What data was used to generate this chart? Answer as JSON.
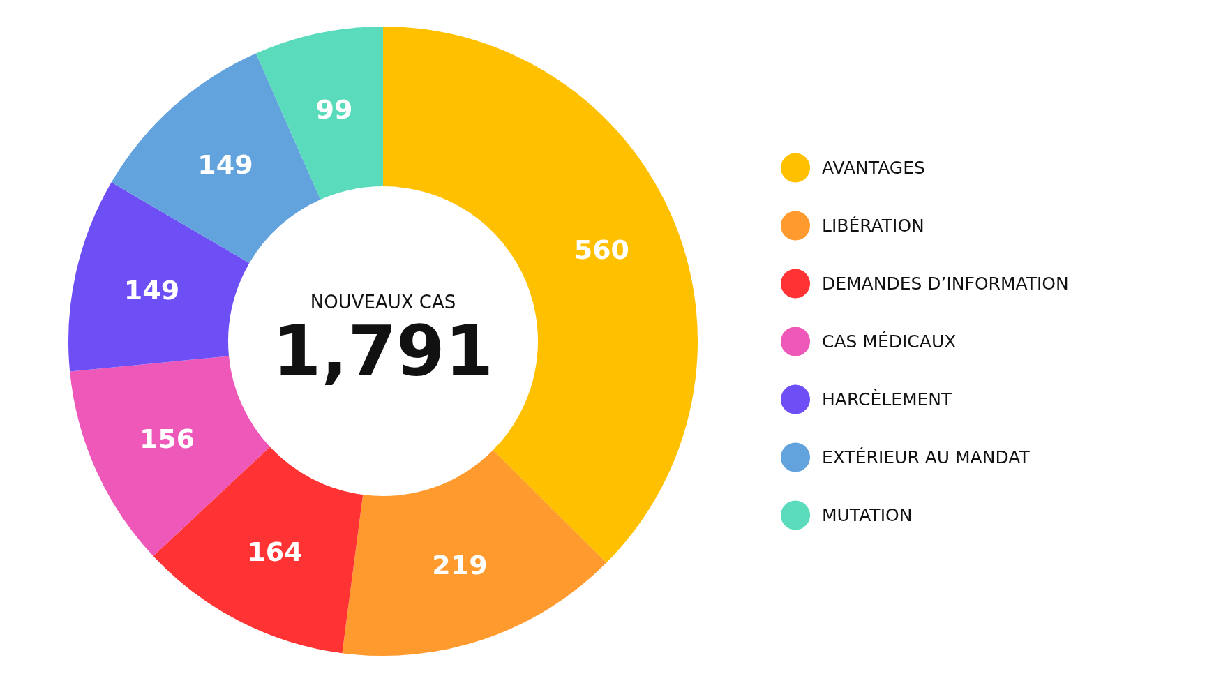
{
  "chart_data": {
    "type": "donut",
    "categories": [
      "AVANTAGES",
      "LIBÉRATION",
      "DEMANDES D’INFORMATION",
      "CAS MÉDICAUX",
      "HARCÈLEMENT",
      "EXTÉRIEUR AU MANDAT",
      "MUTATION"
    ],
    "values": [
      560,
      219,
      164,
      156,
      149,
      149,
      99
    ],
    "colors": [
      "#ffc000",
      "#ff9a2e",
      "#ff3333",
      "#ee58b8",
      "#6e4ff6",
      "#62a3de",
      "#5adcbc"
    ],
    "data_labels": true,
    "legend": "right",
    "annotations": [
      "NOUVEAUX CAS",
      "1,791"
    ]
  }
}
